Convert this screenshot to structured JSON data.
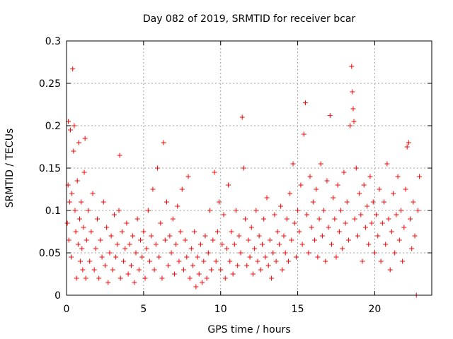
{
  "chart_data": {
    "type": "scatter",
    "title": "Day 082 of 2019, SRMTID for receiver bcar",
    "xlabel": "GPS time / hours",
    "ylabel": "SRMTID / TECUs",
    "xlim": [
      0,
      23.7
    ],
    "ylim": [
      0,
      0.3
    ],
    "xticks": [
      0,
      5,
      10,
      15,
      20
    ],
    "xtick_labels": [
      "0",
      "5",
      "10",
      "15",
      "20"
    ],
    "yticks": [
      0,
      0.05,
      0.1,
      0.15,
      0.2,
      0.25,
      0.3
    ],
    "ytick_labels": [
      "0",
      "0.05",
      "0.1",
      "0.15",
      "0.2",
      "0.25",
      "0.3"
    ],
    "grid": true,
    "marker": "plus",
    "color": "#ff0000",
    "series": [
      {
        "name": "SRMTID",
        "points": [
          [
            0.05,
            0.085
          ],
          [
            0.1,
            0.13
          ],
          [
            0.12,
            0.205
          ],
          [
            0.15,
            0.065
          ],
          [
            0.2,
            0.11
          ],
          [
            0.25,
            0.195
          ],
          [
            0.3,
            0.045
          ],
          [
            0.35,
            0.12
          ],
          [
            0.4,
            0.267
          ],
          [
            0.45,
            0.17
          ],
          [
            0.5,
            0.2
          ],
          [
            0.55,
            0.1
          ],
          [
            0.6,
            0.075
          ],
          [
            0.65,
            0.02
          ],
          [
            0.7,
            0.135
          ],
          [
            0.75,
            0.06
          ],
          [
            0.8,
            0.18
          ],
          [
            0.85,
            0.09
          ],
          [
            0.9,
            0.04
          ],
          [
            0.95,
            0.11
          ],
          [
            1.0,
            0.055
          ],
          [
            1.05,
            0.03
          ],
          [
            1.1,
            0.08
          ],
          [
            1.15,
            0.145
          ],
          [
            1.2,
            0.185
          ],
          [
            1.25,
            0.02
          ],
          [
            1.3,
            0.065
          ],
          [
            1.4,
            0.1
          ],
          [
            1.5,
            0.04
          ],
          [
            1.6,
            0.075
          ],
          [
            1.7,
            0.12
          ],
          [
            1.8,
            0.03
          ],
          [
            1.9,
            0.055
          ],
          [
            2.0,
            0.09
          ],
          [
            2.1,
            0.02
          ],
          [
            2.2,
            0.065
          ],
          [
            2.3,
            0.045
          ],
          [
            2.4,
            0.11
          ],
          [
            2.5,
            0.035
          ],
          [
            2.6,
            0.08
          ],
          [
            2.7,
            0.015
          ],
          [
            2.8,
            0.05
          ],
          [
            2.9,
            0.07
          ],
          [
            3.0,
            0.03
          ],
          [
            3.1,
            0.095
          ],
          [
            3.2,
            0.045
          ],
          [
            3.3,
            0.06
          ],
          [
            3.4,
            0.1
          ],
          [
            3.45,
            0.165
          ],
          [
            3.5,
            0.02
          ],
          [
            3.6,
            0.075
          ],
          [
            3.7,
            0.04
          ],
          [
            3.8,
            0.055
          ],
          [
            3.9,
            0.085
          ],
          [
            4.0,
            0.025
          ],
          [
            4.1,
            0.06
          ],
          [
            4.2,
            0.035
          ],
          [
            4.3,
            0.07
          ],
          [
            4.4,
            0.015
          ],
          [
            4.5,
            0.05
          ],
          [
            4.6,
            0.09
          ],
          [
            4.7,
            0.03
          ],
          [
            4.8,
            0.065
          ],
          [
            4.9,
            0.045
          ],
          [
            5.0,
            0.075
          ],
          [
            5.1,
            0.02
          ],
          [
            5.2,
            0.055
          ],
          [
            5.3,
            0.1
          ],
          [
            5.4,
            0.04
          ],
          [
            5.5,
            0.07
          ],
          [
            5.6,
            0.125
          ],
          [
            5.7,
            0.03
          ],
          [
            5.8,
            0.06
          ],
          [
            5.9,
            0.15
          ],
          [
            6.0,
            0.045
          ],
          [
            6.1,
            0.085
          ],
          [
            6.2,
            0.02
          ],
          [
            6.3,
            0.18
          ],
          [
            6.4,
            0.065
          ],
          [
            6.5,
            0.11
          ],
          [
            6.6,
            0.035
          ],
          [
            6.7,
            0.07
          ],
          [
            6.8,
            0.05
          ],
          [
            6.9,
            0.09
          ],
          [
            7.0,
            0.025
          ],
          [
            7.1,
            0.06
          ],
          [
            7.2,
            0.105
          ],
          [
            7.3,
            0.04
          ],
          [
            7.4,
            0.075
          ],
          [
            7.5,
            0.125
          ],
          [
            7.6,
            0.03
          ],
          [
            7.7,
            0.065
          ],
          [
            7.8,
            0.045
          ],
          [
            7.9,
            0.14
          ],
          [
            8.0,
            0.02
          ],
          [
            8.1,
            0.055
          ],
          [
            8.2,
            0.035
          ],
          [
            8.3,
            0.075
          ],
          [
            8.4,
            0.01
          ],
          [
            8.5,
            0.045
          ],
          [
            8.6,
            0.025
          ],
          [
            8.7,
            0.06
          ],
          [
            8.8,
            0.015
          ],
          [
            8.9,
            0.04
          ],
          [
            9.0,
            0.07
          ],
          [
            9.1,
            0.02
          ],
          [
            9.2,
            0.05
          ],
          [
            9.3,
            0.1
          ],
          [
            9.4,
            0.03
          ],
          [
            9.5,
            0.065
          ],
          [
            9.6,
            0.145
          ],
          [
            9.7,
            0.04
          ],
          [
            9.8,
            0.075
          ],
          [
            9.9,
            0.11
          ],
          [
            10.0,
            0.03
          ],
          [
            10.1,
            0.06
          ],
          [
            10.2,
            0.095
          ],
          [
            10.3,
            0.02
          ],
          [
            10.4,
            0.055
          ],
          [
            10.5,
            0.13
          ],
          [
            10.6,
            0.04
          ],
          [
            10.7,
            0.075
          ],
          [
            10.8,
            0.025
          ],
          [
            10.9,
            0.06
          ],
          [
            11.0,
            0.1
          ],
          [
            11.1,
            0.035
          ],
          [
            11.2,
            0.07
          ],
          [
            11.3,
            0.05
          ],
          [
            11.4,
            0.21
          ],
          [
            11.5,
            0.15
          ],
          [
            11.6,
            0.09
          ],
          [
            11.7,
            0.035
          ],
          [
            11.8,
            0.065
          ],
          [
            11.9,
            0.045
          ],
          [
            12.0,
            0.08
          ],
          [
            12.1,
            0.025
          ],
          [
            12.2,
            0.055
          ],
          [
            12.3,
            0.1
          ],
          [
            12.4,
            0.04
          ],
          [
            12.5,
            0.07
          ],
          [
            12.6,
            0.03
          ],
          [
            12.7,
            0.06
          ],
          [
            12.8,
            0.09
          ],
          [
            12.9,
            0.045
          ],
          [
            13.0,
            0.115
          ],
          [
            13.1,
            0.035
          ],
          [
            13.2,
            0.065
          ],
          [
            13.3,
            0.02
          ],
          [
            13.4,
            0.05
          ],
          [
            13.5,
            0.095
          ],
          [
            13.6,
            0.04
          ],
          [
            13.7,
            0.075
          ],
          [
            13.8,
            0.06
          ],
          [
            13.9,
            0.105
          ],
          [
            14.0,
            0.03
          ],
          [
            14.1,
            0.07
          ],
          [
            14.2,
            0.05
          ],
          [
            14.3,
            0.09
          ],
          [
            14.4,
            0.04
          ],
          [
            14.5,
            0.12
          ],
          [
            14.6,
            0.065
          ],
          [
            14.7,
            0.155
          ],
          [
            14.8,
            0.085
          ],
          [
            14.9,
            0.045
          ],
          [
            15.0,
            0.1
          ],
          [
            15.1,
            0.075
          ],
          [
            15.2,
            0.13
          ],
          [
            15.3,
            0.06
          ],
          [
            15.4,
            0.19
          ],
          [
            15.5,
            0.227
          ],
          [
            15.6,
            0.095
          ],
          [
            15.7,
            0.05
          ],
          [
            15.8,
            0.14
          ],
          [
            15.9,
            0.08
          ],
          [
            16.0,
            0.11
          ],
          [
            16.1,
            0.065
          ],
          [
            16.2,
            0.125
          ],
          [
            16.3,
            0.045
          ],
          [
            16.4,
            0.09
          ],
          [
            16.5,
            0.155
          ],
          [
            16.6,
            0.07
          ],
          [
            16.7,
            0.1
          ],
          [
            16.8,
            0.04
          ],
          [
            16.9,
            0.135
          ],
          [
            17.0,
            0.08
          ],
          [
            17.1,
            0.212
          ],
          [
            17.2,
            0.06
          ],
          [
            17.3,
            0.115
          ],
          [
            17.4,
            0.09
          ],
          [
            17.5,
            0.045
          ],
          [
            17.6,
            0.13
          ],
          [
            17.7,
            0.075
          ],
          [
            17.8,
            0.1
          ],
          [
            17.9,
            0.055
          ],
          [
            18.0,
            0.145
          ],
          [
            18.1,
            0.085
          ],
          [
            18.2,
            0.11
          ],
          [
            18.3,
            0.065
          ],
          [
            18.4,
            0.2
          ],
          [
            18.5,
            0.27
          ],
          [
            18.55,
            0.24
          ],
          [
            18.6,
            0.22
          ],
          [
            18.65,
            0.205
          ],
          [
            18.7,
            0.09
          ],
          [
            18.8,
            0.15
          ],
          [
            18.9,
            0.07
          ],
          [
            19.0,
            0.12
          ],
          [
            19.1,
            0.095
          ],
          [
            19.2,
            0.04
          ],
          [
            19.3,
            0.13
          ],
          [
            19.4,
            0.08
          ],
          [
            19.5,
            0.105
          ],
          [
            19.6,
            0.06
          ],
          [
            19.7,
            0.14
          ],
          [
            19.8,
            0.085
          ],
          [
            19.9,
            0.11
          ],
          [
            20.0,
            0.05
          ],
          [
            20.1,
            0.095
          ],
          [
            20.2,
            0.07
          ],
          [
            20.3,
            0.125
          ],
          [
            20.4,
            0.04
          ],
          [
            20.5,
            0.085
          ],
          [
            20.6,
            0.11
          ],
          [
            20.7,
            0.06
          ],
          [
            20.8,
            0.155
          ],
          [
            20.9,
            0.09
          ],
          [
            21.0,
            0.03
          ],
          [
            21.1,
            0.075
          ],
          [
            21.2,
            0.12
          ],
          [
            21.3,
            0.05
          ],
          [
            21.4,
            0.095
          ],
          [
            21.5,
            0.14
          ],
          [
            21.6,
            0.065
          ],
          [
            21.7,
            0.1
          ],
          [
            21.8,
            0.04
          ],
          [
            21.9,
            0.08
          ],
          [
            22.0,
            0.125
          ],
          [
            22.1,
            0.175
          ],
          [
            22.2,
            0.18
          ],
          [
            22.3,
            0.09
          ],
          [
            22.4,
            0.055
          ],
          [
            22.5,
            0.11
          ],
          [
            22.6,
            0.07
          ],
          [
            22.7,
            0.0
          ],
          [
            22.8,
            0.1
          ],
          [
            22.9,
            0.14
          ]
        ]
      }
    ]
  }
}
